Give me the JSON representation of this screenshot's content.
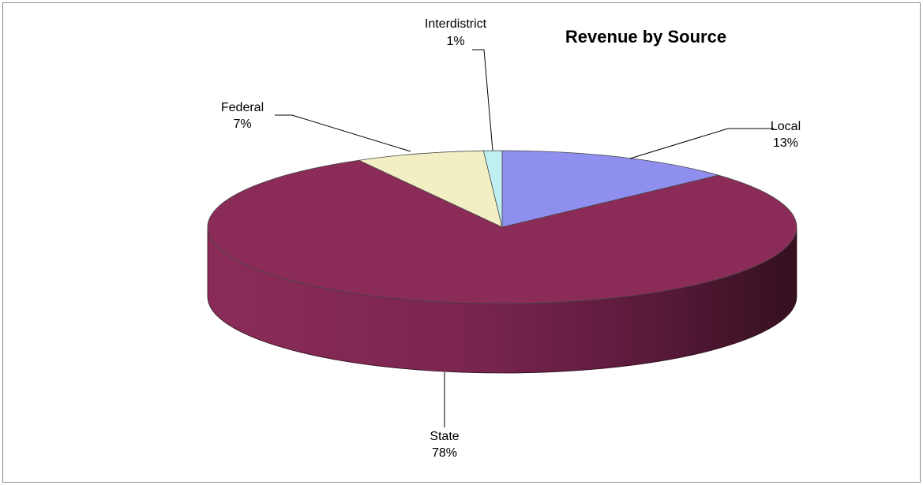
{
  "chart_data": {
    "type": "pie",
    "title": "Revenue by Source",
    "categories": [
      "Local",
      "State",
      "Federal",
      "Interdistrict"
    ],
    "values": [
      13,
      78,
      7,
      1
    ],
    "labels": [
      {
        "name": "Local",
        "value_label": "13%"
      },
      {
        "name": "State",
        "value_label": "78%"
      },
      {
        "name": "Federal",
        "value_label": "7%"
      },
      {
        "name": "Interdistrict",
        "value_label": "1%"
      }
    ],
    "colors": [
      "#8f8fef",
      "#8b2c58",
      "#f3efc4",
      "#bfeff0"
    ]
  }
}
